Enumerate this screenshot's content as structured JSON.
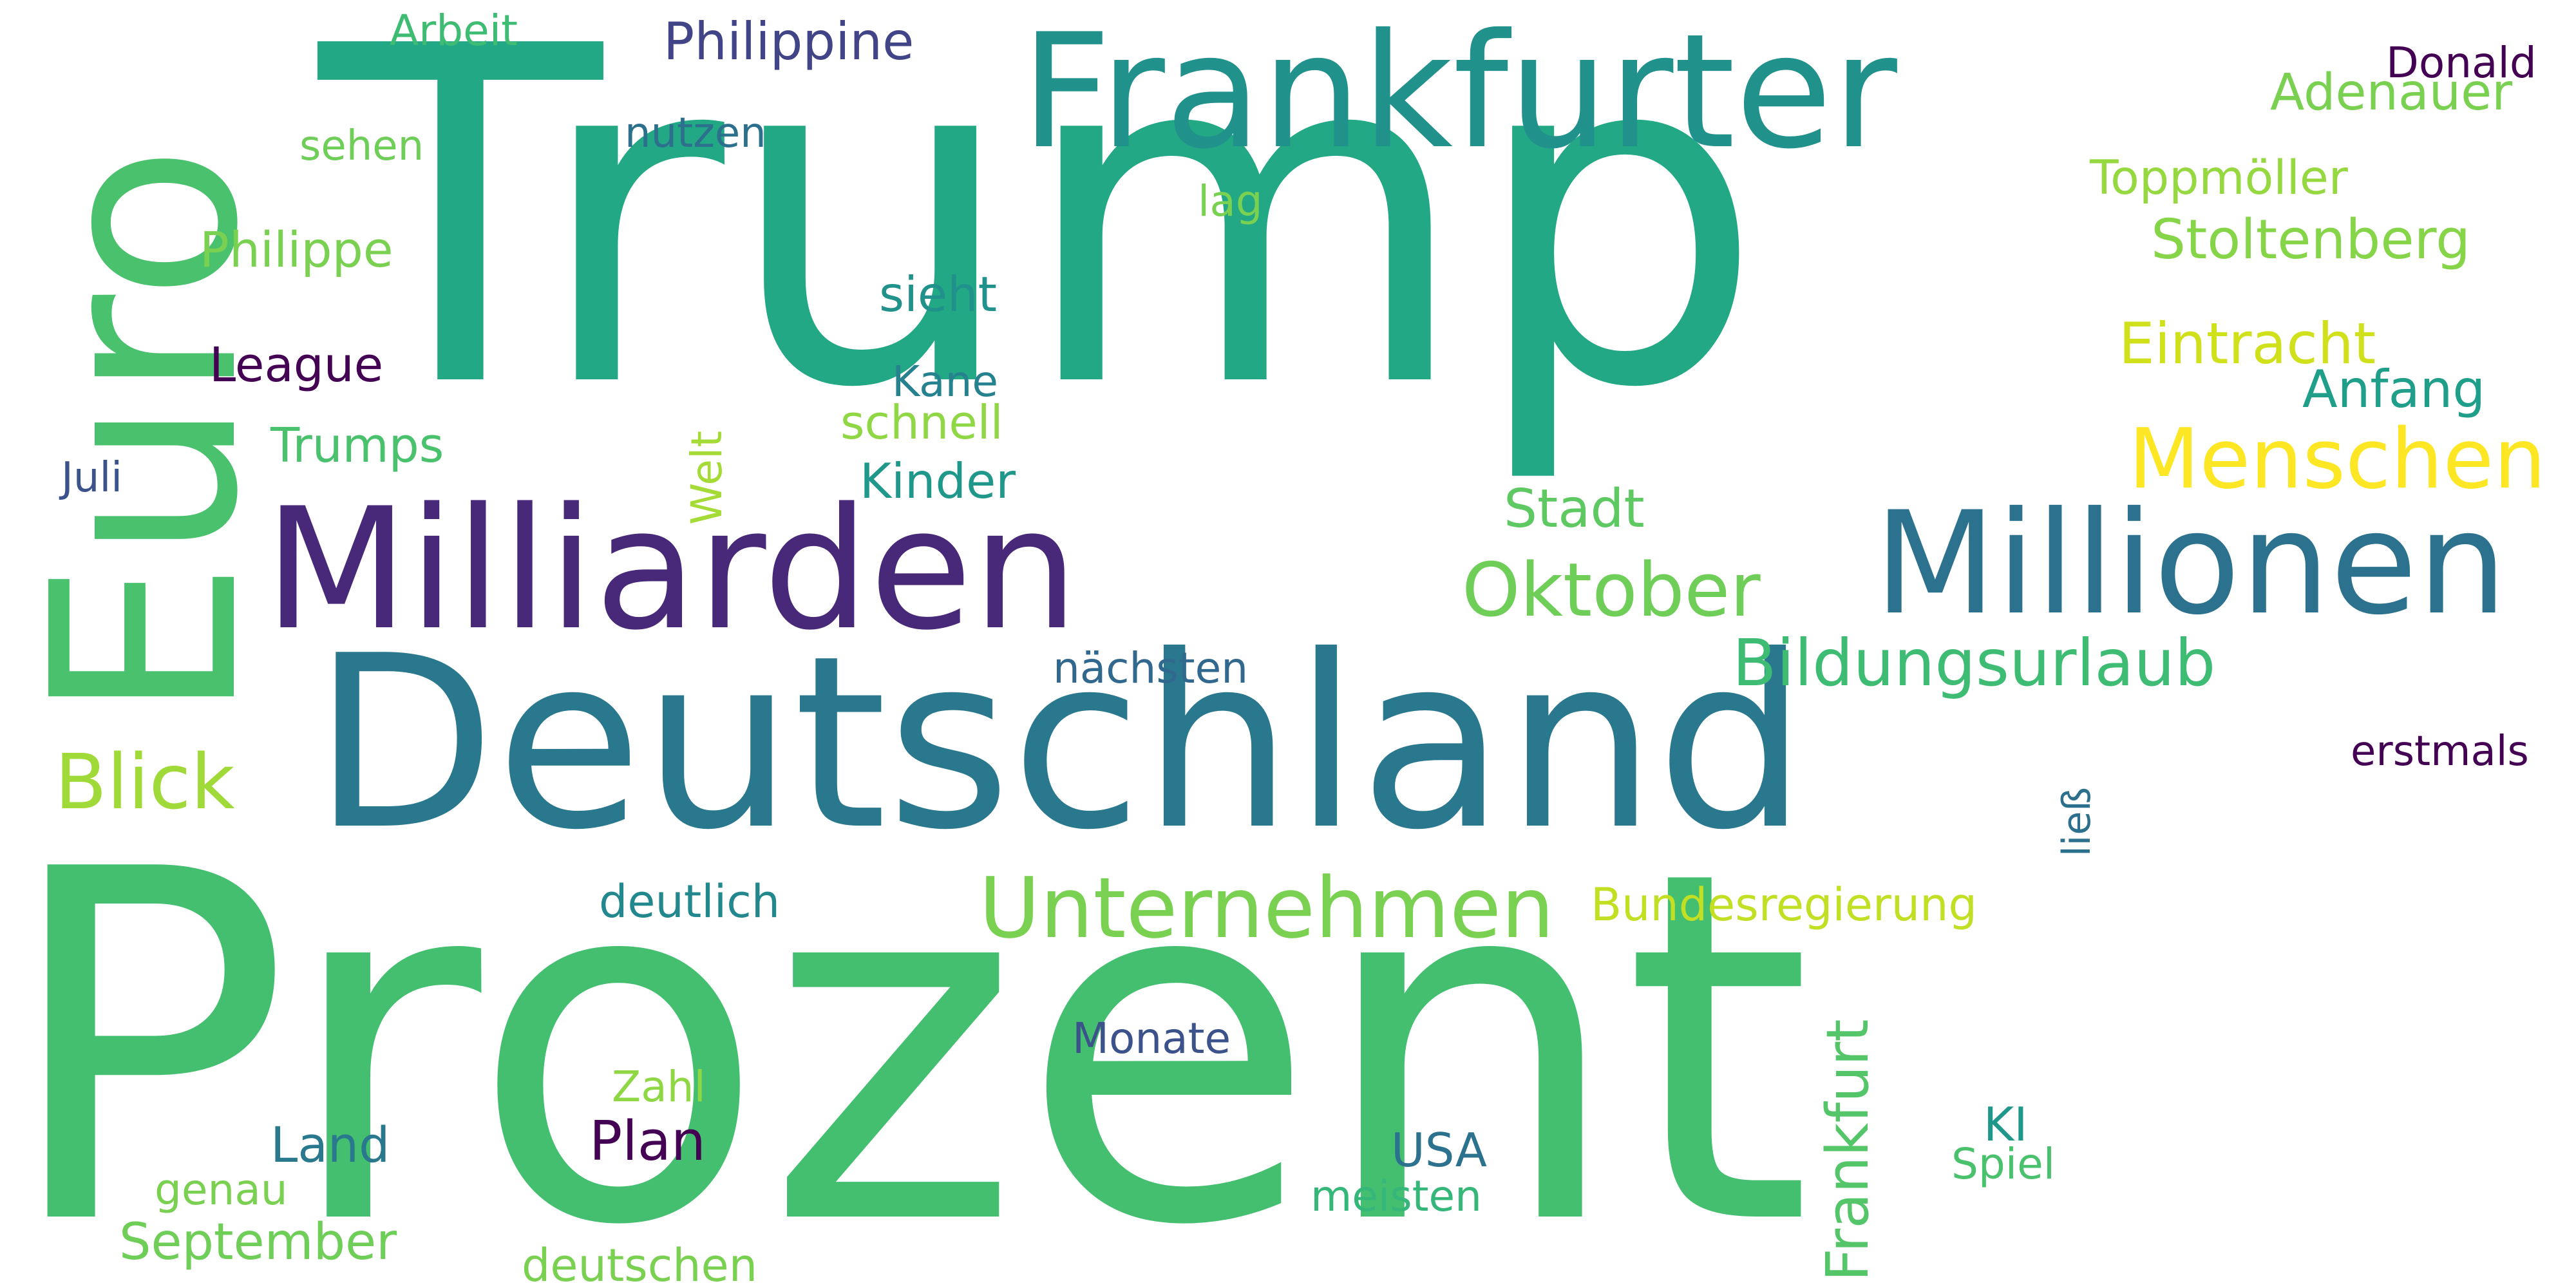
{
  "colors": {
    "teal": "#21908d",
    "darkteal": "#2a788e",
    "green": "#22a884",
    "midgreen": "#44bf70",
    "lightgreen": "#7ad151",
    "lime": "#bddf26",
    "yellow": "#fde725",
    "purple": "#46327e",
    "darkpurple": "#440154",
    "blue": "#3b528b"
  },
  "words": [
    {
      "text": "Prozent",
      "color": "#44bf70"
    },
    {
      "text": "Trump",
      "color": "#22a884"
    },
    {
      "text": "Deutschland",
      "color": "#2a788e"
    },
    {
      "text": "Milliarden",
      "color": "#482878"
    },
    {
      "text": "Euro",
      "color": "#4ac16d"
    },
    {
      "text": "Frankfurter",
      "color": "#21918c"
    },
    {
      "text": "Millionen",
      "color": "#2c728e"
    },
    {
      "text": "Unternehmen",
      "color": "#7ad151"
    },
    {
      "text": "Menschen",
      "color": "#fde725"
    },
    {
      "text": "Oktober",
      "color": "#6ece58"
    },
    {
      "text": "Bildungsurlaub",
      "color": "#3fbc73"
    },
    {
      "text": "Blick",
      "color": "#a0da39"
    },
    {
      "text": "Eintracht",
      "color": "#d0e11c"
    },
    {
      "text": "Stoltenberg",
      "color": "#86d549"
    },
    {
      "text": "Philippine",
      "color": "#414487"
    },
    {
      "text": "Adenauer",
      "color": "#7ad151"
    },
    {
      "text": "Donald",
      "color": "#440154"
    },
    {
      "text": "Toppmöller",
      "color": "#95d840"
    },
    {
      "text": "Anfang",
      "color": "#1f9e89"
    },
    {
      "text": "Stadt",
      "color": "#5ec962"
    },
    {
      "text": "Kinder",
      "color": "#1f988b"
    },
    {
      "text": "schnell",
      "color": "#8fd744"
    },
    {
      "text": "Kane",
      "color": "#26828e"
    },
    {
      "text": "sieht",
      "color": "#21918c"
    },
    {
      "text": "lag",
      "color": "#7ad151"
    },
    {
      "text": "nutzen",
      "color": "#2d708e"
    },
    {
      "text": "Arbeit",
      "color": "#3fbc73"
    },
    {
      "text": "sehen",
      "color": "#6ece58"
    },
    {
      "text": "Philippe",
      "color": "#7ad151"
    },
    {
      "text": "League",
      "color": "#440154"
    },
    {
      "text": "Trumps",
      "color": "#4ac16d"
    },
    {
      "text": "Juli",
      "color": "#3b528b"
    },
    {
      "text": "Welt",
      "color": "#a5db36"
    },
    {
      "text": "nächsten",
      "color": "#31688e"
    },
    {
      "text": "erstmals",
      "color": "#440154"
    },
    {
      "text": "ließ",
      "color": "#2d708e"
    },
    {
      "text": "Bundesregierung",
      "color": "#c2df23"
    },
    {
      "text": "deutlich",
      "color": "#23888e"
    },
    {
      "text": "Frankfurt",
      "color": "#54c568"
    },
    {
      "text": "Monate",
      "color": "#3b528b"
    },
    {
      "text": "Zahl",
      "color": "#8fd744"
    },
    {
      "text": "Land",
      "color": "#2a788e"
    },
    {
      "text": "Plan",
      "color": "#440154"
    },
    {
      "text": "USA",
      "color": "#2c728e"
    },
    {
      "text": "KI",
      "color": "#1f988b"
    },
    {
      "text": "Spiel",
      "color": "#4ac16d"
    },
    {
      "text": "genau",
      "color": "#7ad151"
    },
    {
      "text": "meisten",
      "color": "#35b779"
    },
    {
      "text": "September",
      "color": "#6ece58"
    },
    {
      "text": "deutschen",
      "color": "#7ad151"
    }
  ]
}
